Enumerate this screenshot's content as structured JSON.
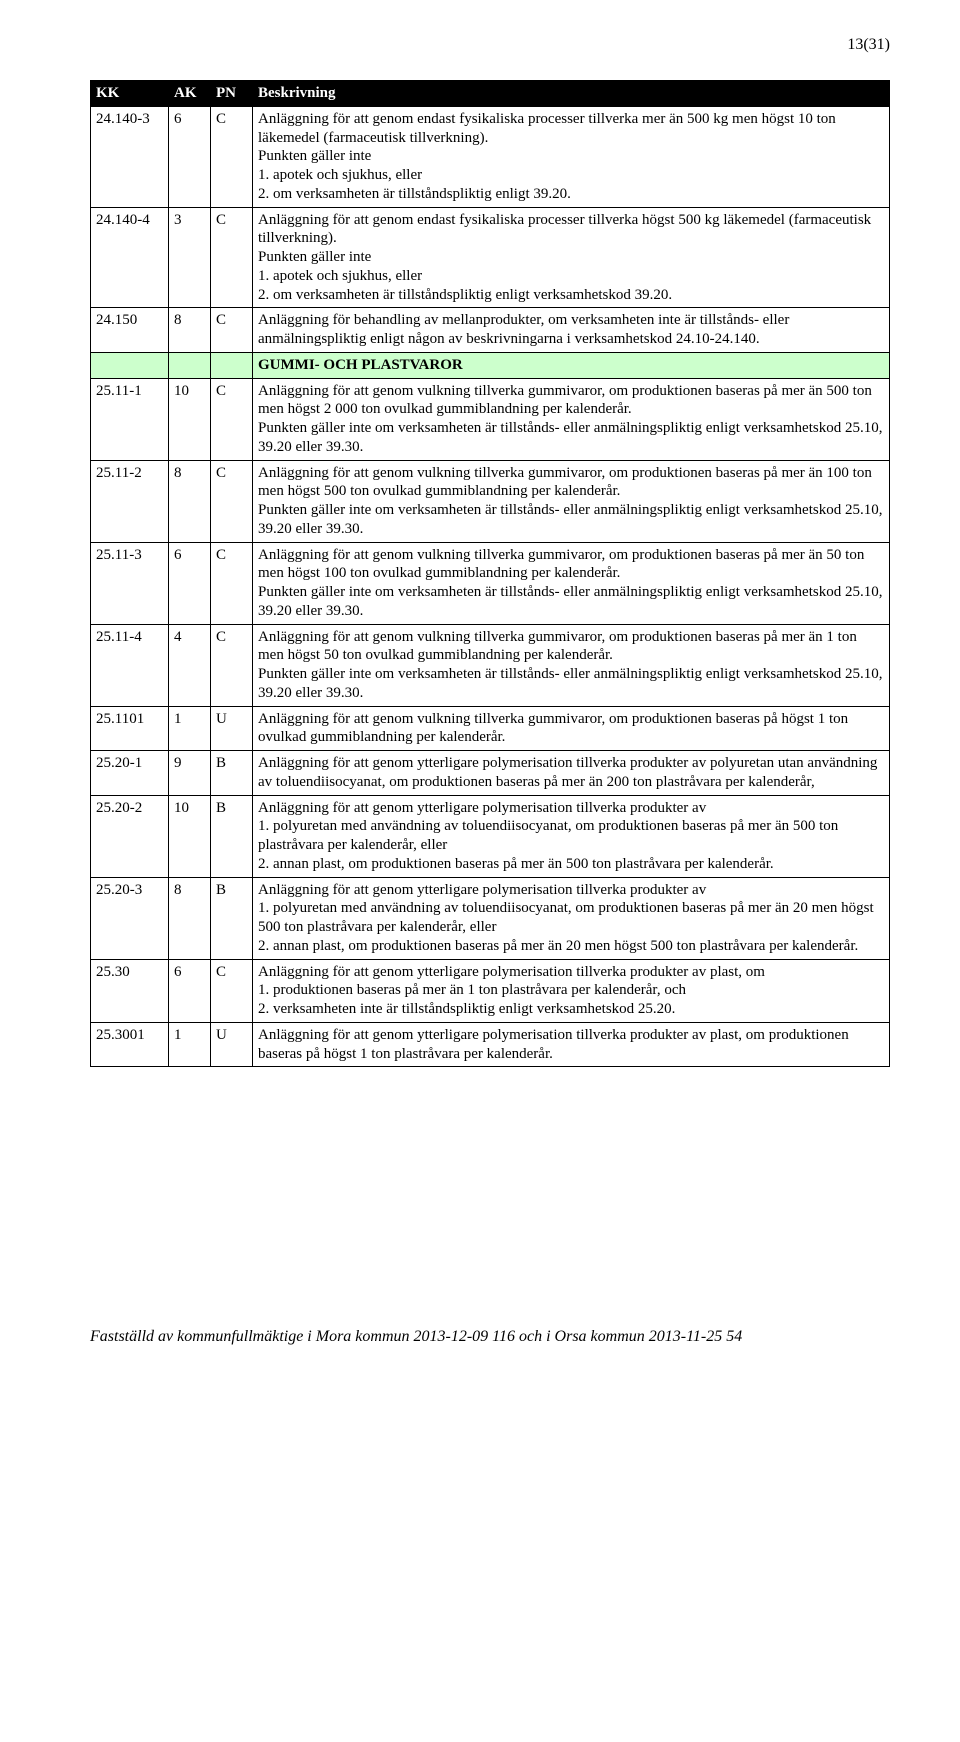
{
  "page_number": "13(31)",
  "headers": {
    "kk": "KK",
    "ak": "AK",
    "pn": "PN",
    "desc": "Beskrivning"
  },
  "rows": [
    {
      "kk": "24.140-3",
      "ak": "6",
      "pn": "C",
      "desc": "Anläggning för att genom endast fysikaliska processer tillverka mer än 500 kg men högst 10 ton läkemedel (farmaceutisk tillverkning).\nPunkten gäller inte\n1. apotek och sjukhus, eller\n2. om verksamheten är tillståndspliktig enligt 39.20."
    },
    {
      "kk": "24.140-4",
      "ak": "3",
      "pn": "C",
      "desc": "Anläggning för att genom endast fysikaliska processer tillverka högst 500 kg läkemedel (farmaceutisk tillverkning).\nPunkten gäller inte\n1. apotek och sjukhus, eller\n2. om verksamheten är tillståndspliktig enligt verksamhetskod 39.20."
    },
    {
      "kk": "24.150",
      "ak": "8",
      "pn": "C",
      "desc": "Anläggning för behandling av mellanprodukter, om verksamheten inte är tillstånds- eller anmälningspliktig enligt någon av beskrivningarna i verksamhetskod 24.10-24.140."
    },
    {
      "section": true,
      "desc": "GUMMI- OCH PLASTVAROR"
    },
    {
      "kk": "25.11-1",
      "ak": "10",
      "pn": "C",
      "desc": "Anläggning för att genom vulkning tillverka gummivaror, om produktionen baseras på mer än 500 ton men högst 2 000 ton ovulkad gummiblandning per kalenderår.\nPunkten gäller inte om verksamheten är tillstånds- eller anmälningspliktig enligt verksamhetskod 25.10, 39.20 eller 39.30."
    },
    {
      "kk": "25.11-2",
      "ak": "8",
      "pn": "C",
      "desc": "Anläggning för att genom vulkning tillverka gummivaror, om produktionen baseras på mer än 100 ton men högst 500 ton ovulkad gummiblandning per kalenderår.\nPunkten gäller inte om verksamheten är tillstånds- eller anmälningspliktig enligt verksamhetskod 25.10, 39.20 eller 39.30."
    },
    {
      "kk": "25.11-3",
      "ak": "6",
      "pn": "C",
      "desc": "Anläggning för att genom vulkning tillverka gummivaror, om produktionen baseras på mer än 50 ton men högst 100 ton ovulkad gummiblandning per kalenderår.\nPunkten gäller inte om verksamheten är tillstånds- eller anmälningspliktig enligt verksamhetskod 25.10, 39.20 eller 39.30."
    },
    {
      "kk": "25.11-4",
      "ak": "4",
      "pn": "C",
      "desc": "Anläggning för att genom vulkning tillverka gummivaror, om produktionen baseras på mer än 1 ton men högst 50 ton ovulkad gummiblandning per kalenderår.\nPunkten gäller inte om verksamheten är tillstånds- eller anmälningspliktig enligt verksamhetskod 25.10, 39.20 eller 39.30."
    },
    {
      "kk": "25.1101",
      "ak": "1",
      "pn": "U",
      "desc": "Anläggning för att genom vulkning tillverka gummivaror, om produktionen baseras på högst 1 ton ovulkad gummiblandning per kalenderår."
    },
    {
      "kk": "25.20-1",
      "ak": "9",
      "pn": "B",
      "desc": "Anläggning för att genom ytterligare polymerisation tillverka produkter av polyuretan utan användning av toluendiisocyanat, om produktionen baseras på mer än 200 ton plastråvara per kalenderår,"
    },
    {
      "kk": "25.20-2",
      "ak": "10",
      "pn": "B",
      "desc": "Anläggning för att genom ytterligare polymerisation tillverka produkter av\n1. polyuretan med användning av toluendiisocyanat, om produktionen baseras på mer än 500 ton plastråvara per kalenderår, eller\n2. annan plast, om produktionen baseras på mer än 500 ton plastråvara per kalenderår."
    },
    {
      "kk": "25.20-3",
      "ak": "8",
      "pn": "B",
      "desc": "Anläggning för att genom ytterligare polymerisation tillverka produkter av\n1. polyuretan med användning av toluendiisocyanat, om produktionen baseras på mer än 20 men högst 500 ton plastråvara per kalenderår, eller\n2. annan plast, om produktionen baseras på mer än 20 men högst 500 ton plastråvara per kalenderår."
    },
    {
      "kk": "25.30",
      "ak": "6",
      "pn": "C",
      "desc": "Anläggning för att genom ytterligare polymerisation tillverka produkter av plast, om\n1. produktionen baseras på mer än 1 ton plastråvara per kalenderår, och\n2. verksamheten inte är tillståndspliktig enligt verksamhetskod 25.20."
    },
    {
      "kk": "25.3001",
      "ak": "1",
      "pn": "U",
      "desc": "Anläggning för att genom ytterligare polymerisation tillverka produkter av plast, om produktionen baseras på högst 1 ton plastråvara per kalenderår."
    }
  ],
  "footer": "Fastställd av kommunfullmäktige i Mora kommun 2013-12-09 116 och i Orsa kommun 2013-11-25 54",
  "colors": {
    "header_bg": "#000000",
    "header_fg": "#ffffff",
    "section_bg": "#ccffcc",
    "border": "#000000",
    "page_bg": "#ffffff"
  }
}
